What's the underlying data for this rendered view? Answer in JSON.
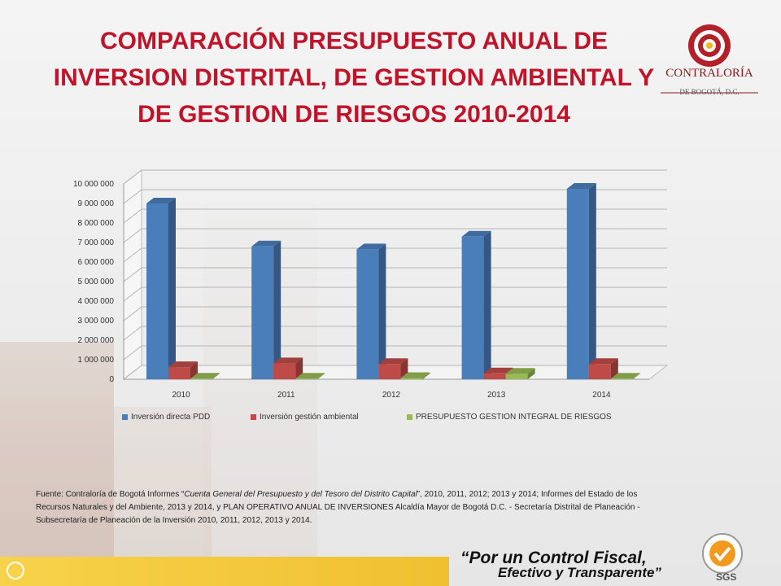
{
  "title_lines": [
    "COMPARACIÓN PRESUPUESTO ANUAL DE",
    "INVERSION DISTRITAL, DE GESTION AMBIENTAL Y",
    "DE GESTION DE RIESGOS 2010-2014"
  ],
  "logo": {
    "name": "CONTRALORÍA",
    "sub": "DE BOGOTÁ, D.C."
  },
  "chart_data": {
    "type": "bar",
    "categories": [
      "2010",
      "2011",
      "2012",
      "2013",
      "2014"
    ],
    "series": [
      {
        "name": "Inversión directa PDD",
        "color": "#4a7ebb",
        "values": [
          9000000,
          6800000,
          6650000,
          7300000,
          9750000
        ]
      },
      {
        "name": "Inversión gestión ambiental",
        "color": "#be4b48",
        "values": [
          620000,
          820000,
          780000,
          300000,
          780000
        ]
      },
      {
        "name": "PRESUPUESTO GESTION INTEGRAL DE RIESGOS",
        "color": "#98b954",
        "values": [
          30000,
          30000,
          60000,
          280000,
          30000
        ]
      }
    ],
    "ylim": [
      0,
      10000000
    ],
    "yticks": [
      "0",
      "1 000 000",
      "2 000 000",
      "3 000 000",
      "4 000 000",
      "5 000 000",
      "6 000 000",
      "7 000 000",
      "8 000 000",
      "9 000 000",
      "10 000 000"
    ],
    "grid": true,
    "legend_position": "bottom"
  },
  "source": {
    "prefix": "Fuente: Contraloría de Bogotá Informes “",
    "italic": "Cuenta General del Presupuesto y del Tesoro del Distrito Capital",
    "suffix": "”, 2010, 2011, 2012;  2013 y 2014; Informes del Estado de los Recursos Naturales y del Ambiente, 2013 y 2014, y PLAN OPERATIVO ANUAL DE INVERSIONES  Alcaldía Mayor de Bogotá D.C. - Secretaría Distrital de Planeación  - Subsecretaría de Planeación de la Inversión  2010, 2011, 2012, 2013 y 2014."
  },
  "footer": {
    "slogan_line1": "“Por un Control Fiscal,",
    "slogan_line2": "Efectivo y Transparente”",
    "cert": "SGS"
  }
}
